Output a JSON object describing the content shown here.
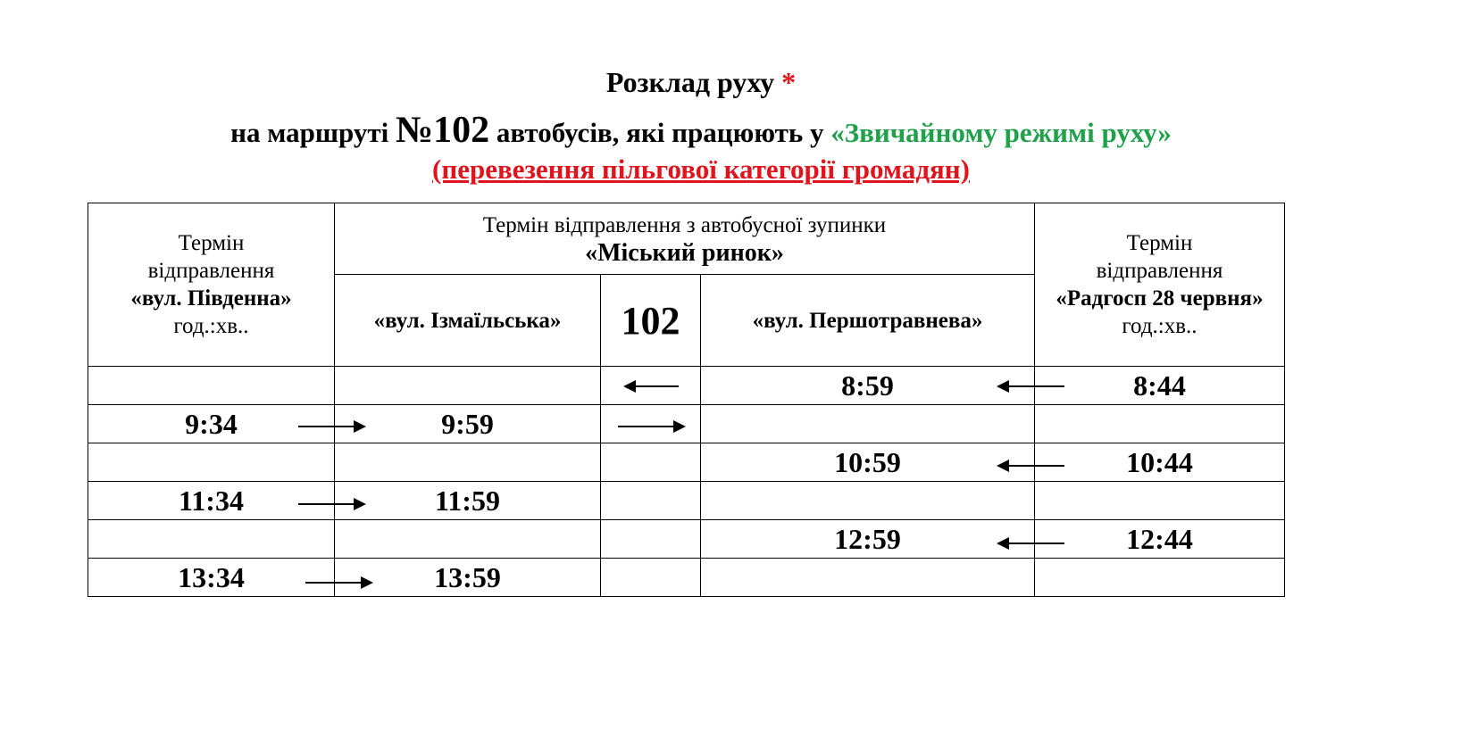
{
  "title": {
    "line1": "Розклад руху",
    "asterisk": "*",
    "line2_prefix": "на маршруті",
    "route_number": "№102",
    "line2_middle": "автобусів, які працюють у",
    "mode": "«Звичайному режимі руху»",
    "line3": "(перевезення  пільгової  категорії  громадян)"
  },
  "colors": {
    "red": "#e0141c",
    "green": "#1fa14a"
  },
  "table": {
    "col1_header": {
      "line1": "Термін",
      "line2": "відправлення",
      "stop": "«вул. Південна»",
      "unit": "год.:хв.."
    },
    "center_header": {
      "line1": "Термін відправлення з автобусної зупинки",
      "stop": "«Міський ринок»"
    },
    "sub_headers": [
      "«вул. Ізмаїльська»",
      "102",
      "«вул. Першотравнева»"
    ],
    "col5_header": {
      "line1": "Термін",
      "line2": "відправлення",
      "stop": "«Радгосп 28 червня»",
      "unit": "год.:хв.."
    },
    "rows": [
      [
        "",
        "",
        "←",
        "8:59",
        "8:44"
      ],
      [
        "9:34",
        "9:59",
        "→",
        "",
        ""
      ],
      [
        "",
        "",
        "",
        "10:59",
        "10:44"
      ],
      [
        "11:34",
        "11:59",
        "",
        "",
        ""
      ],
      [
        "",
        "",
        "",
        "12:59",
        "12:44"
      ],
      [
        "13:34",
        "13:59",
        "",
        "",
        ""
      ]
    ]
  }
}
